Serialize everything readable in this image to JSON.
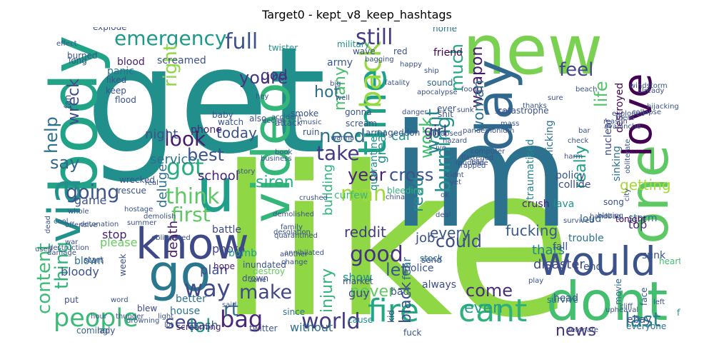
{
  "chart_data": {
    "type": "wordcloud",
    "title": "Target0 - kept_v8_keep_hashtags",
    "words": [
      {
        "text": "like",
        "color": "#8fd744"
      },
      {
        "text": "get",
        "color": "#21908d"
      },
      {
        "text": "im",
        "color": "#2c728e"
      },
      {
        "text": "new",
        "color": "#7ad151"
      },
      {
        "text": "body",
        "color": "#20a386"
      },
      {
        "text": "one",
        "color": "#5ec962"
      },
      {
        "text": "video",
        "color": "#34b679"
      },
      {
        "text": "day",
        "color": "#31688e"
      },
      {
        "text": "u",
        "color": "#1f9e89"
      },
      {
        "text": "dont",
        "color": "#44bf70"
      },
      {
        "text": "would",
        "color": "#3b528b"
      },
      {
        "text": "love",
        "color": "#440154"
      },
      {
        "text": "go",
        "color": "#2a788e"
      },
      {
        "text": "know",
        "color": "#3e4989"
      },
      {
        "text": "via",
        "color": "#21918c"
      },
      {
        "text": "time",
        "color": "#1fa187"
      },
      {
        "text": "back",
        "color": "#95d840"
      },
      {
        "text": "fire",
        "color": "#22a785"
      },
      {
        "text": "cant",
        "color": "#2db27d"
      },
      {
        "text": "people",
        "color": "#3aba76"
      },
      {
        "text": "bag",
        "color": "#482878"
      },
      {
        "text": "world",
        "color": "#443983"
      },
      {
        "text": "emergency",
        "color": "#1f9a8a"
      },
      {
        "text": "full",
        "color": "#3b528b"
      },
      {
        "text": "still",
        "color": "#443a83"
      },
      {
        "text": "last",
        "color": "#26828e"
      },
      {
        "text": "got",
        "color": "#29af7f"
      },
      {
        "text": "think",
        "color": "#5cc863"
      },
      {
        "text": "make",
        "color": "#404688"
      },
      {
        "text": "man",
        "color": "#a0da39"
      },
      {
        "text": "going",
        "color": "#3b528b"
      },
      {
        "text": "way",
        "color": "#3e4a89"
      },
      {
        "text": "look",
        "color": "#481b6d"
      },
      {
        "text": "take",
        "color": "#443983"
      },
      {
        "text": "want",
        "color": "#26828e"
      },
      {
        "text": "need",
        "color": "#2c728e"
      },
      {
        "text": "good",
        "color": "#46327e"
      },
      {
        "text": "see",
        "color": "#3f4788"
      },
      {
        "text": "lol",
        "color": "#1f9a8a"
      },
      {
        "text": "youre",
        "color": "#443983"
      },
      {
        "text": "feel",
        "color": "#414487"
      },
      {
        "text": "news",
        "color": "#46327e"
      },
      {
        "text": "come",
        "color": "#472d7b"
      },
      {
        "text": "content",
        "color": "#3dbc74"
      },
      {
        "text": "thing",
        "color": "#2fb47c"
      },
      {
        "text": "best",
        "color": "#3b528b"
      },
      {
        "text": "say",
        "color": "#31688e"
      },
      {
        "text": "help",
        "color": "#2c728e"
      },
      {
        "text": "much",
        "color": "#22a884"
      },
      {
        "text": "right",
        "color": "#8fd744"
      },
      {
        "text": "rt",
        "color": "#2e6e8e"
      },
      {
        "text": "year",
        "color": "#482576"
      },
      {
        "text": "cross",
        "color": "#3b528b"
      },
      {
        "text": "work",
        "color": "#42be71"
      },
      {
        "text": "burning",
        "color": "#21908d"
      },
      {
        "text": "really",
        "color": "#1fa088"
      },
      {
        "text": "life",
        "color": "#52c569"
      },
      {
        "text": "read",
        "color": "#24868e"
      },
      {
        "text": "let",
        "color": "#38588c"
      },
      {
        "text": "black",
        "color": "#3b528b"
      },
      {
        "text": "injury",
        "color": "#31b57b"
      },
      {
        "text": "could",
        "color": "#3e4c8a"
      },
      {
        "text": "even",
        "color": "#1f9e89"
      },
      {
        "text": "first",
        "color": "#5ec962"
      },
      {
        "text": "wreck",
        "color": "#3e4c8a"
      },
      {
        "text": "many",
        "color": "#4ac16d"
      },
      {
        "text": "siren",
        "color": "#28ae80"
      },
      {
        "text": "today",
        "color": "#3b528b"
      },
      {
        "text": "hot",
        "color": "#2d708e"
      },
      {
        "text": "weapon",
        "color": "#481a6c"
      },
      {
        "text": "woman",
        "color": "#2c728e"
      },
      {
        "text": "fucking",
        "color": "#38598c"
      },
      {
        "text": "disaster",
        "color": "#3f4788"
      },
      {
        "text": "every",
        "color": "#3a548c"
      },
      {
        "text": "never",
        "color": "#5ec962"
      },
      {
        "text": "getting",
        "color": "#a5db36"
      },
      {
        "text": "reddit",
        "color": "#443983"
      },
      {
        "text": "great",
        "color": "#21918c"
      },
      {
        "text": "god",
        "color": "#46327e"
      },
      {
        "text": "girl",
        "color": "#46307e"
      },
      {
        "text": "car",
        "color": "#1f958b"
      },
      {
        "text": "night",
        "color": "#3b528b"
      },
      {
        "text": "service",
        "color": "#2c728e"
      },
      {
        "text": "thats",
        "color": "#24868e"
      },
      {
        "text": "job",
        "color": "#3b528b"
      },
      {
        "text": "top",
        "color": "#46307e"
      },
      {
        "text": "guy",
        "color": "#3f4788"
      },
      {
        "text": "show",
        "color": "#21918c"
      },
      {
        "text": "plan",
        "color": "#3b528b"
      },
      {
        "text": "photo",
        "color": "#414487"
      },
      {
        "text": "death",
        "color": "#481769"
      },
      {
        "text": "deluge",
        "color": "#2e6f8e"
      },
      {
        "text": "building",
        "color": "#2fb47c"
      },
      {
        "text": "fear",
        "color": "#2c728e"
      },
      {
        "text": "without",
        "color": "#2d708e"
      },
      {
        "text": "crash",
        "color": "#365d8d"
      },
      {
        "text": "school",
        "color": "#482576"
      },
      {
        "text": "game",
        "color": "#3b528b"
      },
      {
        "text": "please",
        "color": "#65cb5e"
      },
      {
        "text": "stop",
        "color": "#482173"
      },
      {
        "text": "blown",
        "color": "#2c728e"
      },
      {
        "text": "bloody",
        "color": "#3b528b"
      },
      {
        "text": "explode",
        "color": "#3b528b"
      },
      {
        "text": "blood",
        "color": "#482173"
      },
      {
        "text": "panic",
        "color": "#2c728e"
      },
      {
        "text": "screamed",
        "color": "#3b528b"
      },
      {
        "text": "twister",
        "color": "#21918c"
      },
      {
        "text": "battle",
        "color": "#3e4989"
      },
      {
        "text": "bomb",
        "color": "#1f9e89"
      },
      {
        "text": "phone",
        "color": "#482878"
      },
      {
        "text": "military",
        "color": "#21918c"
      },
      {
        "text": "army",
        "color": "#38588c"
      },
      {
        "text": "home",
        "color": "#2c728e"
      },
      {
        "text": "friend",
        "color": "#440154"
      },
      {
        "text": "sound",
        "color": "#31688e"
      },
      {
        "text": "crush",
        "color": "#482475"
      },
      {
        "text": "trouble",
        "color": "#2c728e"
      },
      {
        "text": "fall",
        "color": "#3b528b"
      },
      {
        "text": "nuclear",
        "color": "#3e4c8a"
      },
      {
        "text": "destroyed",
        "color": "#440154"
      },
      {
        "text": "sinking",
        "color": "#2c728e"
      },
      {
        "text": "panicking",
        "color": "#2c728e"
      },
      {
        "text": "traumatised",
        "color": "#24868e"
      },
      {
        "text": "quarantine",
        "color": "#21918c"
      },
      {
        "text": "bleeding",
        "color": "#2fb47c"
      },
      {
        "text": "curfew",
        "color": "#3aba76"
      },
      {
        "text": "policy",
        "color": "#3b528b"
      },
      {
        "text": "lava",
        "color": "#21918c"
      },
      {
        "text": "collide",
        "color": "#3e4c8a"
      },
      {
        "text": "stock",
        "color": "#2c728e"
      },
      {
        "text": "police",
        "color": "#3b528b"
      },
      {
        "text": "loud",
        "color": "#31688e"
      },
      {
        "text": "storm",
        "color": "#2c728e"
      },
      {
        "text": "end",
        "color": "#3b528b"
      },
      {
        "text": "ebay",
        "color": "#3e4989"
      },
      {
        "text": "movie",
        "color": "#31688e"
      },
      {
        "text": "face",
        "color": "#38588c"
      },
      {
        "text": "sunk",
        "color": "#3b528b"
      },
      {
        "text": "heart",
        "color": "#44bf70"
      },
      {
        "text": "tonight",
        "color": "#440154"
      },
      {
        "text": "song",
        "color": "#3b528b"
      },
      {
        "text": "always",
        "color": "#3e4c8a"
      },
      {
        "text": "head",
        "color": "#3b528b"
      },
      {
        "text": "survive",
        "color": "#2c728e"
      },
      {
        "text": "bad",
        "color": "#3b528b"
      },
      {
        "text": "kid",
        "color": "#3e4989"
      },
      {
        "text": "cause",
        "color": "#21918c"
      },
      {
        "text": "fuck",
        "color": "#3b528b"
      },
      {
        "text": "everyone",
        "color": "#2c728e"
      },
      {
        "text": "flame",
        "color": "#21918c"
      },
      {
        "text": "since",
        "color": "#2c728e"
      },
      {
        "text": "twitter",
        "color": "#3b528b"
      },
      {
        "text": "screaming",
        "color": "#482576"
      },
      {
        "text": "house",
        "color": "#2c728e"
      },
      {
        "text": "better",
        "color": "#2c728e"
      },
      {
        "text": "coming",
        "color": "#31688e"
      },
      {
        "text": "lady",
        "color": "#3b528b"
      },
      {
        "text": "put",
        "color": "#3b528b"
      },
      {
        "text": "blew",
        "color": "#3e4989"
      },
      {
        "text": "week",
        "color": "#3b528b"
      },
      {
        "text": "hope",
        "color": "#482173"
      },
      {
        "text": "inundated",
        "color": "#3b528b"
      },
      {
        "text": "destroy",
        "color": "#65cb5e"
      },
      {
        "text": "drown",
        "color": "#3b528b"
      },
      {
        "text": "start",
        "color": "#3b528b"
      },
      {
        "text": "rescue",
        "color": "#3b528b"
      },
      {
        "text": "wrecked",
        "color": "#3b528b"
      },
      {
        "text": "watch",
        "color": "#3b528b"
      },
      {
        "text": "baby",
        "color": "#3b528b"
      },
      {
        "text": "also",
        "color": "#3b528b"
      },
      {
        "text": "attack",
        "color": "#3b528b"
      },
      {
        "text": "smoke",
        "color": "#3b528b"
      },
      {
        "text": "gonna",
        "color": "#3b528b"
      },
      {
        "text": "scream",
        "color": "#3b528b"
      },
      {
        "text": "armageddon",
        "color": "#3b528b"
      },
      {
        "text": "ruin",
        "color": "#3b528b"
      },
      {
        "text": "flood",
        "color": "#3b528b"
      },
      {
        "text": "keep",
        "color": "#3b528b"
      },
      {
        "text": "liked",
        "color": "#3b528b"
      },
      {
        "text": "fan",
        "color": "#3b528b"
      },
      {
        "text": "burned",
        "color": "#3b528b"
      },
      {
        "text": "long",
        "color": "#3b528b"
      },
      {
        "text": "wave",
        "color": "#3b528b"
      },
      {
        "text": "red",
        "color": "#3b528b"
      },
      {
        "text": "ever",
        "color": "#3b528b"
      },
      {
        "text": "shit",
        "color": "#3b528b"
      },
      {
        "text": "catastrophe",
        "color": "#3b528b"
      },
      {
        "text": "harm",
        "color": "#3b528b"
      },
      {
        "text": "check",
        "color": "#3b528b"
      },
      {
        "text": "handbag",
        "color": "#3b528b"
      },
      {
        "text": "send",
        "color": "#3b528b"
      },
      {
        "text": "market",
        "color": "#3b528b"
      },
      {
        "text": "another",
        "color": "#3b528b"
      },
      {
        "text": "change",
        "color": "#3b528b"
      },
      {
        "text": "zone",
        "color": "#3b528b"
      },
      {
        "text": "said",
        "color": "#3b528b"
      },
      {
        "text": "light",
        "color": "#3b528b"
      },
      {
        "text": "lot",
        "color": "#3b528b"
      },
      {
        "text": "hour",
        "color": "#3b528b"
      },
      {
        "text": "thunder",
        "color": "#3b528b"
      },
      {
        "text": "word",
        "color": "#3b528b"
      },
      {
        "text": "obliterated",
        "color": "#3b528b"
      },
      {
        "text": "deal",
        "color": "#3b528b"
      },
      {
        "text": "survived",
        "color": "#3b528b"
      },
      {
        "text": "blazing",
        "color": "#3b528b"
      },
      {
        "text": "city",
        "color": "#3b528b"
      },
      {
        "text": "obliterate",
        "color": "#3b528b"
      },
      {
        "text": "avalanche",
        "color": "#3b528b"
      },
      {
        "text": "exploded",
        "color": "#3b528b"
      },
      {
        "text": "collapse",
        "color": "#3b528b"
      },
      {
        "text": "hijacking",
        "color": "#3b528b"
      },
      {
        "text": "food",
        "color": "#3b528b"
      },
      {
        "text": "ship",
        "color": "#3b528b"
      },
      {
        "text": "happy",
        "color": "#3b528b"
      },
      {
        "text": "bagging",
        "color": "#3b528b"
      },
      {
        "text": "fatality",
        "color": "#3b528b"
      },
      {
        "text": "apocalypse",
        "color": "#3b528b"
      },
      {
        "text": "danger",
        "color": "#3b528b"
      },
      {
        "text": "crushed",
        "color": "#3b528b"
      },
      {
        "text": "family",
        "color": "#3b528b"
      },
      {
        "text": "quarantined",
        "color": "#3b528b"
      },
      {
        "text": "annihilated",
        "color": "#3b528b"
      },
      {
        "text": "demolished",
        "color": "#3b528b"
      },
      {
        "text": "desolation",
        "color": "#3b528b"
      },
      {
        "text": "war",
        "color": "#3b528b"
      },
      {
        "text": "destruction",
        "color": "#3b528b"
      },
      {
        "text": "damage",
        "color": "#3b528b"
      },
      {
        "text": "used",
        "color": "#3b528b"
      },
      {
        "text": "hey",
        "color": "#3b528b"
      },
      {
        "text": "accident",
        "color": "#3b528b"
      },
      {
        "text": "thanks",
        "color": "#3b528b"
      },
      {
        "text": "play",
        "color": "#3b528b"
      },
      {
        "text": "china",
        "color": "#3b528b"
      },
      {
        "text": "secret",
        "color": "#3b528b"
      },
      {
        "text": "music",
        "color": "#3b528b"
      },
      {
        "text": "business",
        "color": "#3b528b"
      },
      {
        "text": "story",
        "color": "#3b528b"
      },
      {
        "text": "drowning",
        "color": "#3b528b"
      },
      {
        "text": "real",
        "color": "#3b528b"
      },
      {
        "text": "cool",
        "color": "#3b528b"
      },
      {
        "text": "dead",
        "color": "#3b528b"
      },
      {
        "text": "left",
        "color": "#3b528b"
      },
      {
        "text": "cliff",
        "color": "#3b528b"
      },
      {
        "text": "upheaval",
        "color": "#3b528b"
      },
      {
        "text": "detonate",
        "color": "#3b528b"
      },
      {
        "text": "demolish",
        "color": "#3b528b"
      },
      {
        "text": "offensive",
        "color": "#3b528b"
      },
      {
        "text": "detonation",
        "color": "#3b528b"
      },
      {
        "text": "summer",
        "color": "#3b528b"
      },
      {
        "text": "hostage",
        "color": "#3b528b"
      },
      {
        "text": "whole",
        "color": "#3b528b"
      },
      {
        "text": "effect",
        "color": "#3b528b"
      },
      {
        "text": "book",
        "color": "#3b528b"
      },
      {
        "text": "wanna",
        "color": "#3b528b"
      },
      {
        "text": "big",
        "color": "#3b528b"
      },
      {
        "text": "well",
        "color": "#3b528b"
      },
      {
        "text": "reason",
        "color": "#3b528b"
      },
      {
        "text": "there",
        "color": "#3b528b"
      },
      {
        "text": "already",
        "color": "#3b528b"
      },
      {
        "text": "bar",
        "color": "#3b528b"
      },
      {
        "text": "sure",
        "color": "#3b528b"
      },
      {
        "text": "windstorm",
        "color": "#3b528b"
      },
      {
        "text": "beach",
        "color": "#3b528b"
      },
      {
        "text": "mass",
        "color": "#3b528b"
      },
      {
        "text": "star",
        "color": "#3b528b"
      },
      {
        "text": "sunk",
        "color": "#3b528b"
      },
      {
        "text": "pandemonium",
        "color": "#3b528b"
      },
      {
        "text": "computer",
        "color": "#3b528b"
      },
      {
        "text": "trapped",
        "color": "#3b528b"
      },
      {
        "text": "flattened",
        "color": "#3b528b"
      },
      {
        "text": "mudslide",
        "color": "#3b528b"
      },
      {
        "text": "ball",
        "color": "#3b528b"
      },
      {
        "text": "collapsed",
        "color": "#3b528b"
      },
      {
        "text": "ive",
        "color": "#3b528b"
      },
      {
        "text": "hazard",
        "color": "#3b528b"
      },
      {
        "text": "didnt",
        "color": "#3b528b"
      },
      {
        "text": "yet",
        "color": "#3b528b"
      },
      {
        "text": "ok",
        "color": "#3b528b"
      }
    ]
  }
}
